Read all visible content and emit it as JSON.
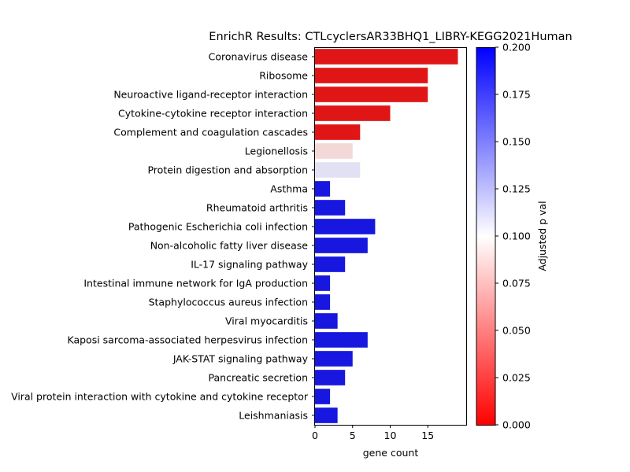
{
  "chart_data": {
    "type": "bar",
    "orientation": "horizontal",
    "title": "EnrichR Results: CTLcyclersAR33BHQ1_LIBRY-KEGG2021Human",
    "xlabel": "gene count",
    "ylabel": "",
    "xlim": [
      0,
      20
    ],
    "x_ticks": [
      "0",
      "5",
      "10",
      "15"
    ],
    "categories": [
      "Coronavirus disease",
      "Ribosome",
      "Neuroactive ligand-receptor interaction",
      "Cytokine-cytokine receptor interaction",
      "Complement and coagulation cascades",
      "Legionellosis",
      "Protein digestion and absorption",
      "Asthma",
      "Rheumatoid arthritis",
      "Pathogenic Escherichia coli infection",
      "Non-alcoholic fatty liver disease",
      "IL-17 signaling pathway",
      "Intestinal immune network for IgA production",
      "Staphylococcus aureus infection",
      "Viral myocarditis",
      "Kaposi sarcoma-associated herpesvirus infection",
      "JAK-STAT signaling pathway",
      "Pancreatic secretion",
      "Viral protein interaction with cytokine and cytokine receptor",
      "Leishmaniasis"
    ],
    "values": [
      19,
      15,
      15,
      10,
      6,
      5,
      6,
      2,
      4,
      8,
      7,
      4,
      2,
      2,
      3,
      7,
      5,
      4,
      2,
      3
    ],
    "adjusted_p": [
      0.01,
      0.01,
      0.01,
      0.01,
      0.01,
      0.07,
      0.12,
      0.19,
      0.19,
      0.19,
      0.19,
      0.19,
      0.19,
      0.19,
      0.19,
      0.19,
      0.19,
      0.19,
      0.19,
      0.19
    ],
    "colorbar": {
      "label": "Adjusted p val",
      "range": [
        0,
        0.2
      ],
      "ticks": [
        "0.000",
        "0.025",
        "0.050",
        "0.075",
        "0.100",
        "0.125",
        "0.150",
        "0.175",
        "0.200"
      ],
      "colormap": [
        "#ff0000",
        "#ffffff",
        "#0000ff"
      ]
    },
    "grid": false,
    "legend": "none"
  }
}
